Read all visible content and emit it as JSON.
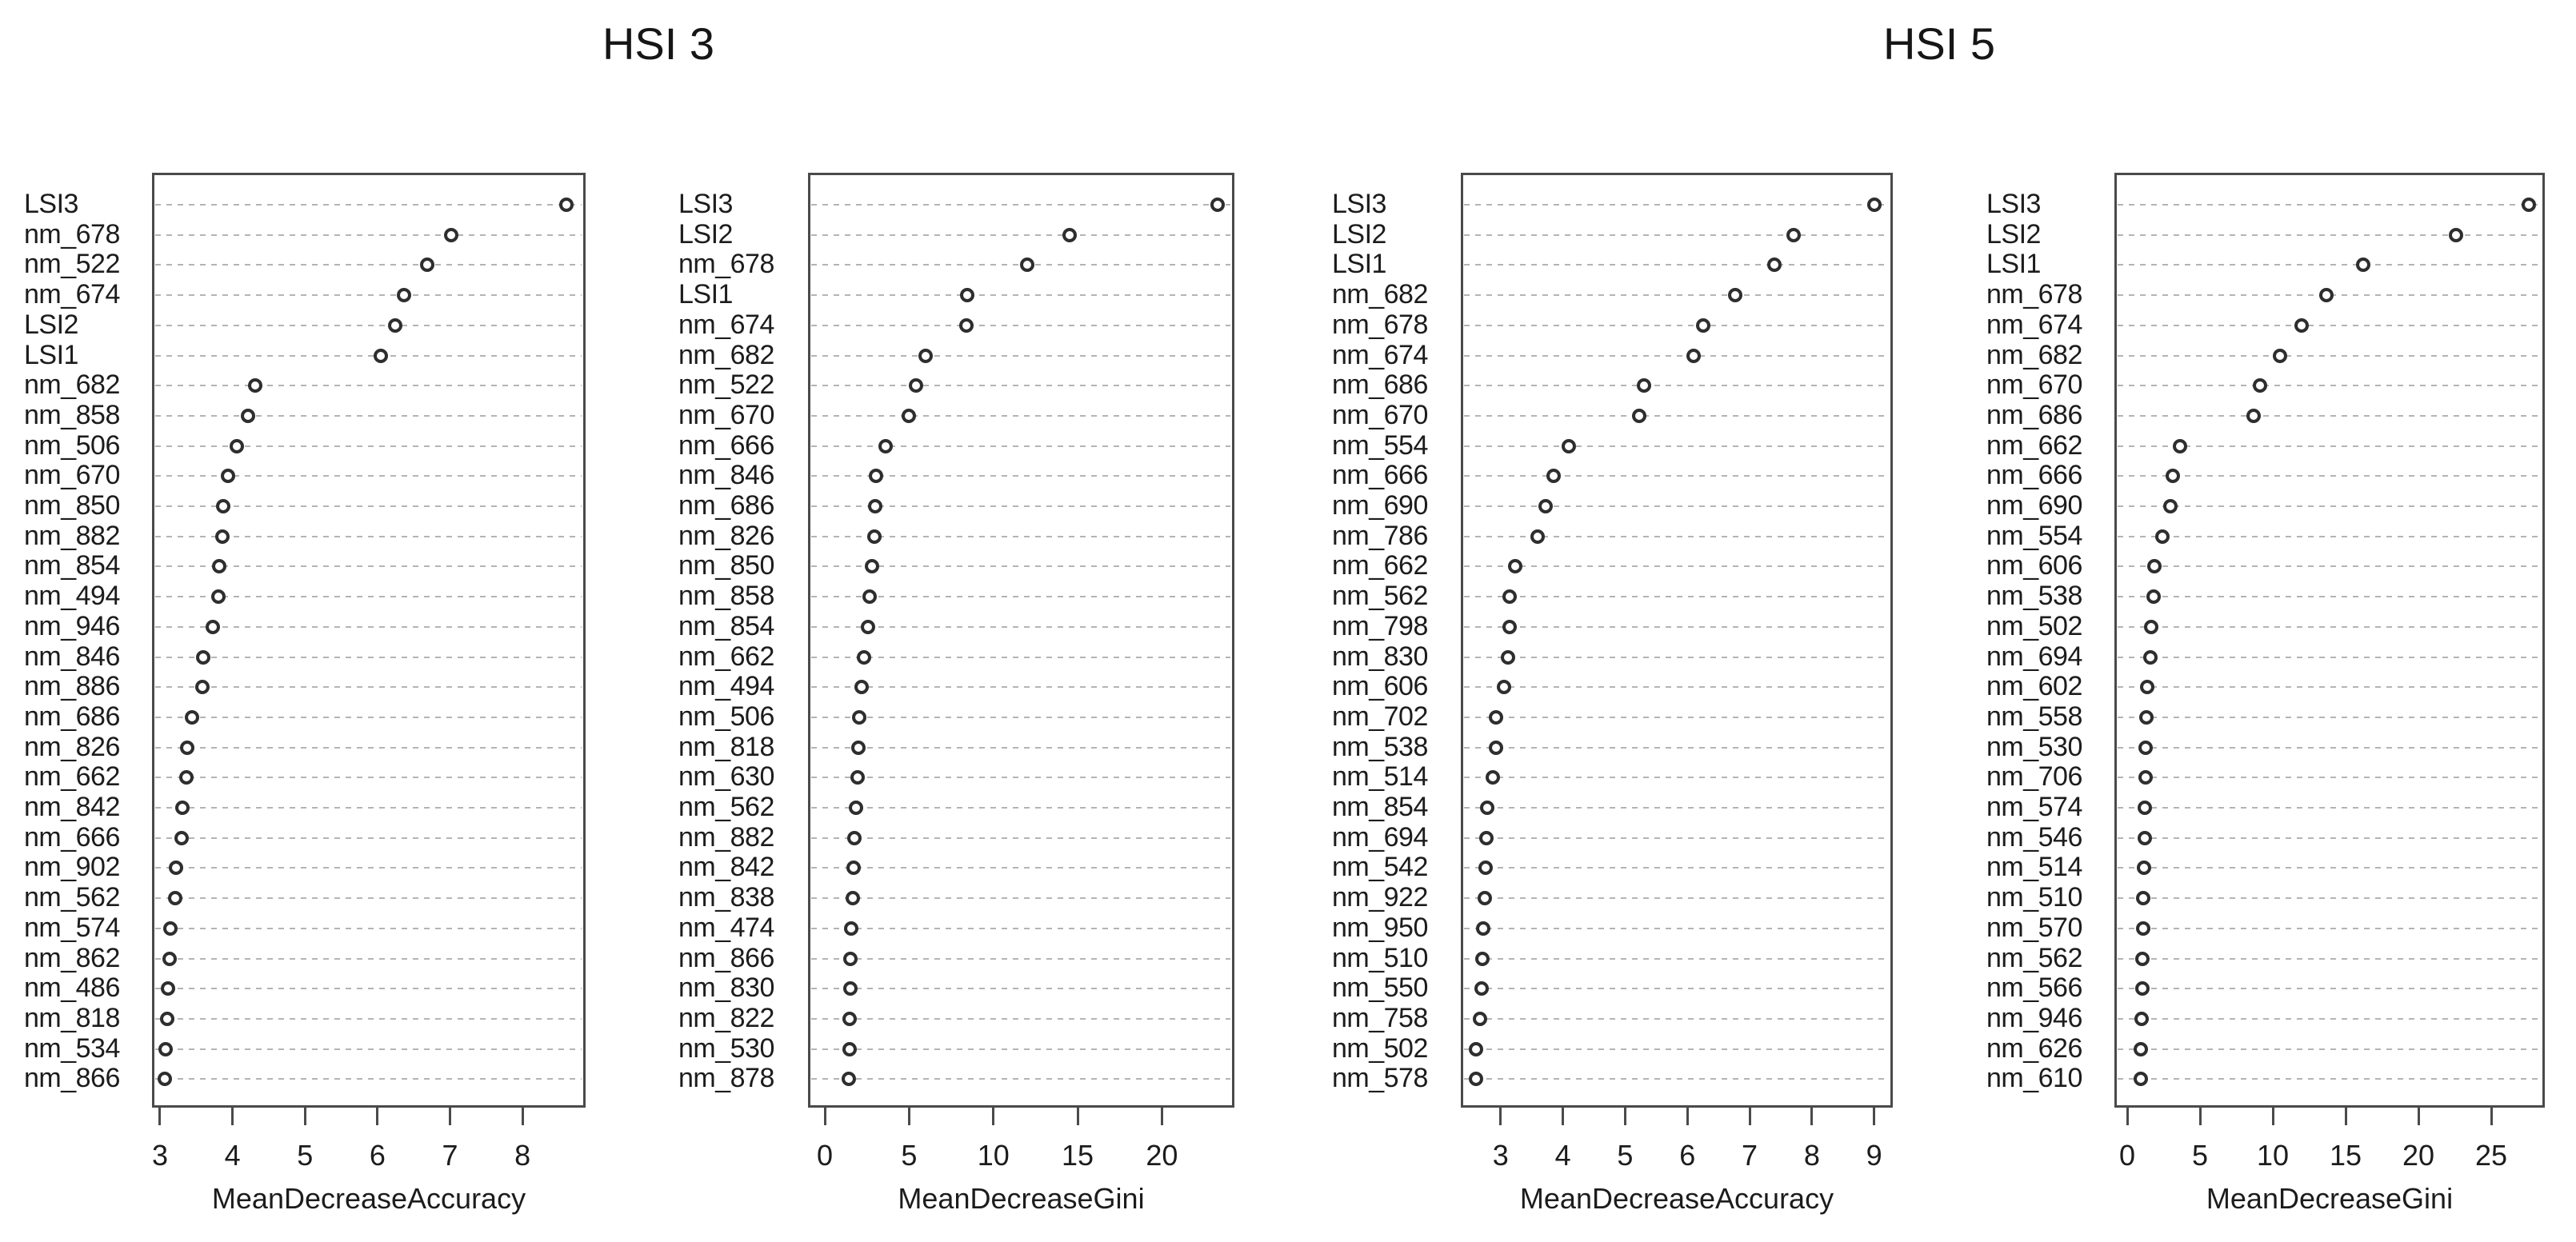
{
  "figure_titles": [
    {
      "text": "HSI 3"
    },
    {
      "text": "HSI 5"
    }
  ],
  "colors": {
    "background": "#ffffff",
    "text": "#1c1c1c",
    "box_border": "#4a4a4a",
    "gridline": "#b4b4b4",
    "dot_ring": "#2e2e2e",
    "dot_fill": "#ffffff"
  },
  "chart_data": [
    {
      "type": "scatter",
      "subtype": "dotchart",
      "group_title": "HSI 3",
      "xlabel": "MeanDecreaseAccuracy",
      "x_ticks": [
        3,
        4,
        5,
        6,
        7,
        8
      ],
      "xlim": [
        2.89,
        8.87
      ],
      "grid": "dashed-horizontal",
      "categories": [
        "LSI3",
        "nm_678",
        "nm_522",
        "nm_674",
        "LSI2",
        "LSI1",
        "nm_682",
        "nm_858",
        "nm_506",
        "nm_670",
        "nm_850",
        "nm_882",
        "nm_854",
        "nm_494",
        "nm_946",
        "nm_846",
        "nm_886",
        "nm_686",
        "nm_826",
        "nm_662",
        "nm_842",
        "nm_666",
        "nm_902",
        "nm_562",
        "nm_574",
        "nm_862",
        "nm_486",
        "nm_818",
        "nm_534",
        "nm_866"
      ],
      "values": [
        8.6,
        7.02,
        6.68,
        6.36,
        6.24,
        6.05,
        4.31,
        4.21,
        4.06,
        3.94,
        3.87,
        3.86,
        3.82,
        3.81,
        3.73,
        3.6,
        3.58,
        3.44,
        3.37,
        3.36,
        3.31,
        3.3,
        3.22,
        3.21,
        3.14,
        3.13,
        3.11,
        3.1,
        3.08,
        3.07
      ]
    },
    {
      "type": "scatter",
      "subtype": "dotchart",
      "group_title": "HSI 3",
      "xlabel": "MeanDecreaseGini",
      "x_ticks": [
        0,
        5,
        10,
        15,
        20
      ],
      "xlim": [
        -1.0,
        24.3
      ],
      "grid": "dashed-horizontal",
      "categories": [
        "LSI3",
        "LSI2",
        "nm_678",
        "LSI1",
        "nm_674",
        "nm_682",
        "nm_522",
        "nm_670",
        "nm_666",
        "nm_846",
        "nm_686",
        "nm_826",
        "nm_850",
        "nm_858",
        "nm_854",
        "nm_662",
        "nm_494",
        "nm_506",
        "nm_818",
        "nm_630",
        "nm_562",
        "nm_882",
        "nm_842",
        "nm_838",
        "nm_474",
        "nm_866",
        "nm_830",
        "nm_822",
        "nm_530",
        "nm_878"
      ],
      "values": [
        23.3,
        14.5,
        12.0,
        8.45,
        8.4,
        6.0,
        5.4,
        5.0,
        3.6,
        3.05,
        3.0,
        2.95,
        2.8,
        2.65,
        2.55,
        2.3,
        2.2,
        2.05,
        2.0,
        1.92,
        1.85,
        1.76,
        1.72,
        1.65,
        1.55,
        1.52,
        1.5,
        1.48,
        1.45,
        1.43
      ]
    },
    {
      "type": "scatter",
      "subtype": "dotchart",
      "group_title": "HSI 5",
      "xlabel": "MeanDecreaseAccuracy",
      "x_ticks": [
        3,
        4,
        5,
        6,
        7,
        8,
        9
      ],
      "xlim": [
        2.36,
        9.3
      ],
      "grid": "dashed-horizontal",
      "categories": [
        "LSI3",
        "LSI2",
        "LSI1",
        "nm_682",
        "nm_678",
        "nm_674",
        "nm_686",
        "nm_670",
        "nm_554",
        "nm_666",
        "nm_690",
        "nm_786",
        "nm_662",
        "nm_562",
        "nm_798",
        "nm_830",
        "nm_606",
        "nm_702",
        "nm_538",
        "nm_514",
        "nm_854",
        "nm_694",
        "nm_542",
        "nm_922",
        "nm_950",
        "nm_510",
        "nm_550",
        "nm_758",
        "nm_502",
        "nm_578"
      ],
      "values": [
        9.0,
        7.7,
        7.4,
        6.77,
        6.26,
        6.1,
        5.3,
        5.22,
        4.1,
        3.85,
        3.72,
        3.6,
        3.24,
        3.15,
        3.14,
        3.12,
        3.05,
        2.93,
        2.92,
        2.87,
        2.78,
        2.77,
        2.76,
        2.74,
        2.72,
        2.71,
        2.7,
        2.67,
        2.61,
        2.6
      ]
    },
    {
      "type": "scatter",
      "subtype": "dotchart",
      "group_title": "HSI 5",
      "xlabel": "MeanDecreaseGini",
      "x_ticks": [
        0,
        5,
        10,
        15,
        20,
        25
      ],
      "xlim": [
        -0.88,
        28.68
      ],
      "grid": "dashed-horizontal",
      "categories": [
        "LSI3",
        "LSI2",
        "LSI1",
        "nm_678",
        "nm_674",
        "nm_682",
        "nm_670",
        "nm_686",
        "nm_662",
        "nm_666",
        "nm_690",
        "nm_554",
        "nm_606",
        "nm_538",
        "nm_502",
        "nm_694",
        "nm_602",
        "nm_558",
        "nm_530",
        "nm_706",
        "nm_574",
        "nm_546",
        "nm_514",
        "nm_510",
        "nm_570",
        "nm_562",
        "nm_566",
        "nm_946",
        "nm_626",
        "nm_610"
      ],
      "values": [
        27.6,
        22.6,
        16.2,
        13.7,
        12.0,
        10.5,
        9.1,
        8.7,
        3.6,
        3.15,
        2.95,
        2.4,
        1.85,
        1.8,
        1.65,
        1.6,
        1.35,
        1.3,
        1.27,
        1.25,
        1.22,
        1.2,
        1.18,
        1.12,
        1.1,
        1.05,
        1.02,
        0.98,
        0.95,
        0.92
      ]
    }
  ]
}
